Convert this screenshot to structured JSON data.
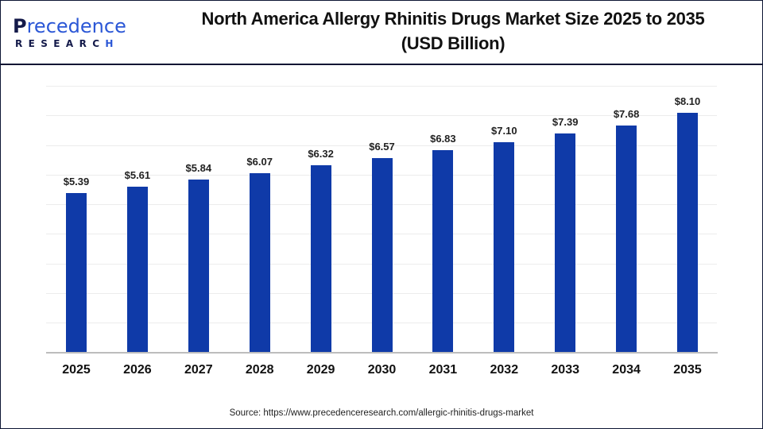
{
  "logo": {
    "line1_first": "P",
    "line1_rest": "recedence",
    "line2_main": "RESEARC",
    "line2_last": "H"
  },
  "title": {
    "line1": "North America Allergy Rhinitis Drugs Market Size 2025 to 2035",
    "line2": "(USD Billion)"
  },
  "source": "Source: https://www.precedenceresearch.com/allergic-rhinitis-drugs-market",
  "colors": {
    "bar": "#0f3aa8",
    "frame": "#0d1533",
    "logo_dark": "#141a4a",
    "logo_accent": "#2b57d6"
  },
  "chart_data": {
    "type": "bar",
    "title": "North America Allergy Rhinitis Drugs Market Size 2025 to 2035 (USD Billion)",
    "xlabel": "",
    "ylabel": "",
    "categories": [
      "2025",
      "2026",
      "2027",
      "2028",
      "2029",
      "2030",
      "2031",
      "2032",
      "2033",
      "2034",
      "2035"
    ],
    "values": [
      5.39,
      5.61,
      5.84,
      6.07,
      6.32,
      6.57,
      6.83,
      7.1,
      7.39,
      7.68,
      8.1
    ],
    "labels": [
      "$5.39",
      "$5.61",
      "$5.84",
      "$6.07",
      "$6.32",
      "$6.57",
      "$6.83",
      "$7.10",
      "$7.39",
      "$7.68",
      "$8.10"
    ],
    "ylim": [
      0,
      9
    ],
    "grid": true,
    "legend": "none",
    "y_axis_visible": false
  }
}
